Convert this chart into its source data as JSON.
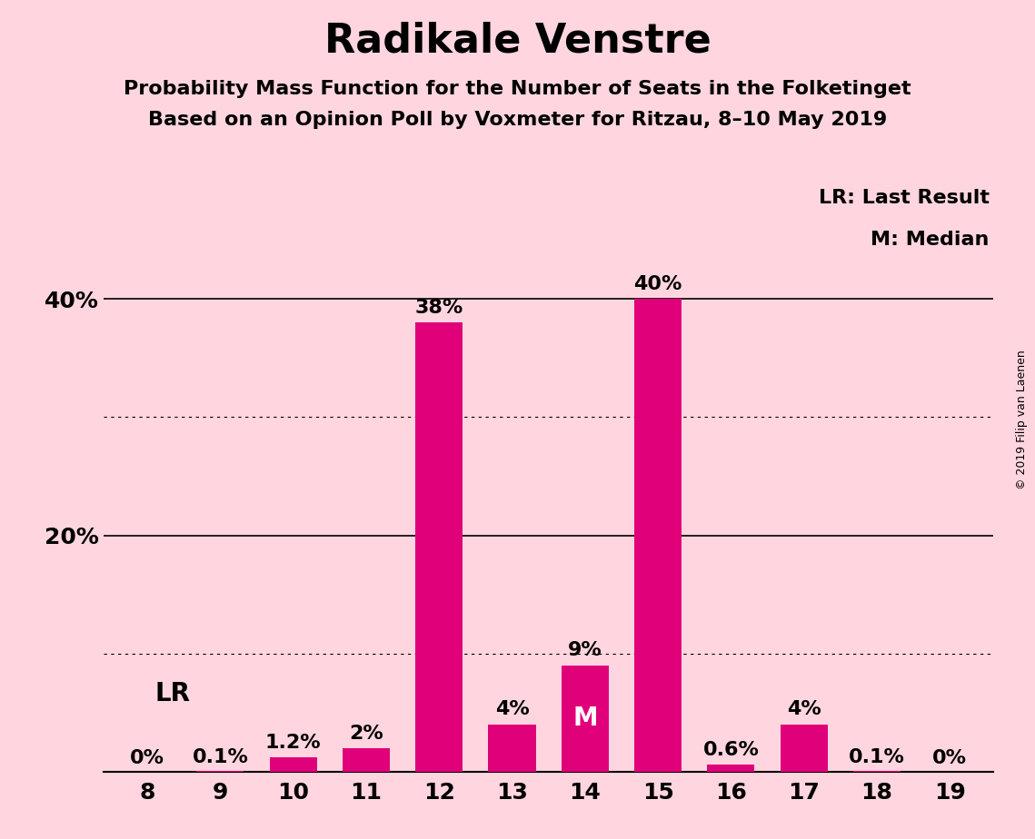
{
  "title": "Radikale Venstre",
  "subtitle1": "Probability Mass Function for the Number of Seats in the Folketinget",
  "subtitle2": "Based on an Opinion Poll by Voxmeter for Ritzau, 8–10 May 2019",
  "categories": [
    8,
    9,
    10,
    11,
    12,
    13,
    14,
    15,
    16,
    17,
    18,
    19
  ],
  "values": [
    0.0,
    0.1,
    1.2,
    2.0,
    38.0,
    4.0,
    9.0,
    40.0,
    0.6,
    4.0,
    0.1,
    0.0
  ],
  "labels": [
    "0%",
    "0.1%",
    "1.2%",
    "2%",
    "38%",
    "4%",
    "9%",
    "40%",
    "0.6%",
    "4%",
    "0.1%",
    "0%"
  ],
  "bar_color": "#E0007A",
  "background_color": "#FFD6E0",
  "median_seat": 14,
  "median_label": "M",
  "lr_seat": 8,
  "lr_label": "LR",
  "legend_lr": "LR: Last Result",
  "legend_m": "M: Median",
  "copyright": "© 2019 Filip van Laenen",
  "ylim": [
    0,
    44
  ],
  "yticks": [
    20,
    40
  ],
  "ytick_labels": [
    "20%",
    "40%"
  ],
  "solid_lines": [
    20,
    40
  ],
  "dotted_lines": [
    10,
    30
  ],
  "title_fontsize": 32,
  "subtitle_fontsize": 16,
  "axis_fontsize": 18,
  "bar_label_fontsize": 16,
  "legend_fontsize": 16,
  "lr_fontsize": 20,
  "copyright_fontsize": 9
}
